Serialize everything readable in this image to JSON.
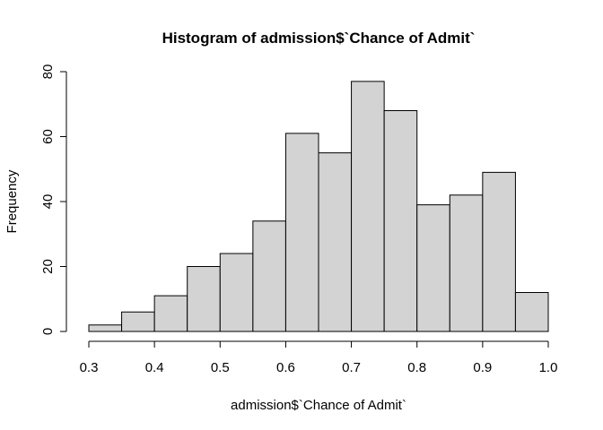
{
  "chart_data": {
    "type": "bar",
    "title": "Histogram of admission$`Chance of Admit`",
    "xlabel": "admission$`Chance of Admit`",
    "ylabel": "Frequency",
    "bins": [
      {
        "x0": 0.3,
        "x1": 0.35,
        "count": 2
      },
      {
        "x0": 0.35,
        "x1": 0.4,
        "count": 6
      },
      {
        "x0": 0.4,
        "x1": 0.45,
        "count": 11
      },
      {
        "x0": 0.45,
        "x1": 0.5,
        "count": 20
      },
      {
        "x0": 0.5,
        "x1": 0.55,
        "count": 24
      },
      {
        "x0": 0.55,
        "x1": 0.6,
        "count": 34
      },
      {
        "x0": 0.6,
        "x1": 0.65,
        "count": 61
      },
      {
        "x0": 0.65,
        "x1": 0.7,
        "count": 55
      },
      {
        "x0": 0.7,
        "x1": 0.75,
        "count": 77
      },
      {
        "x0": 0.75,
        "x1": 0.8,
        "count": 68
      },
      {
        "x0": 0.8,
        "x1": 0.85,
        "count": 39
      },
      {
        "x0": 0.85,
        "x1": 0.9,
        "count": 42
      },
      {
        "x0": 0.9,
        "x1": 0.95,
        "count": 49
      },
      {
        "x0": 0.95,
        "x1": 1.0,
        "count": 12
      }
    ],
    "xlim": [
      0.3,
      1.0
    ],
    "ylim": [
      0,
      80
    ],
    "x_ticks": [
      "0.3",
      "0.4",
      "0.5",
      "0.6",
      "0.7",
      "0.8",
      "0.9",
      "1.0"
    ],
    "y_ticks": [
      "0",
      "20",
      "40",
      "60",
      "80"
    ],
    "grid": false,
    "bar_fill": "#d3d3d3",
    "bar_stroke": "#000000"
  }
}
